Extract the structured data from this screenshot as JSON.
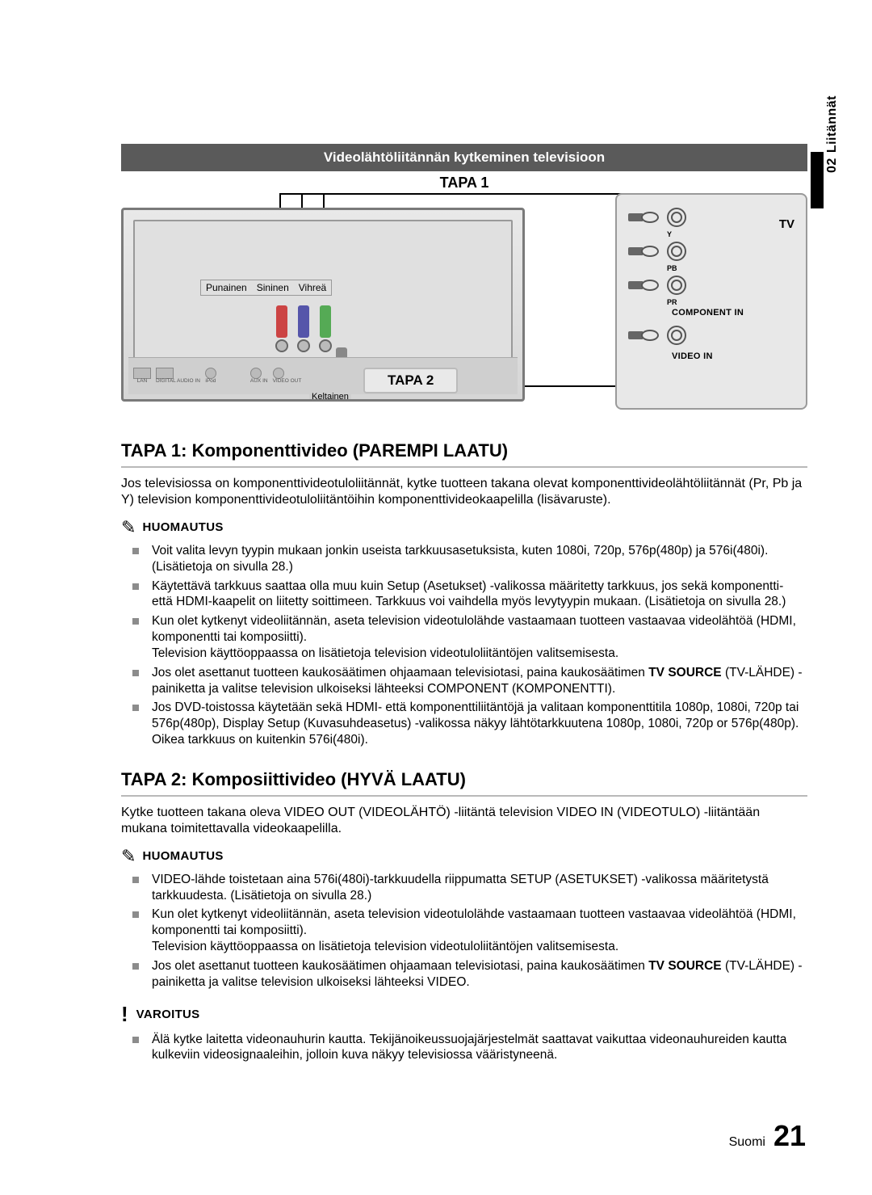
{
  "side_tab": {
    "number": "02",
    "label": "Liitännät"
  },
  "header": {
    "ribbon": "Videolähtöliitännän kytkeminen televisioon",
    "tapa1": "TAPA 1"
  },
  "diagram": {
    "plug_labels": {
      "red": "Punainen",
      "blue": "Sininen",
      "green": "Vihreä"
    },
    "yellow_label": "Keltainen",
    "tapa2_badge": "TAPA 2",
    "tv_label": "TV",
    "jack_subs": {
      "y": "Y",
      "pb": "PB",
      "pr": "PR"
    },
    "component_in": "COMPONENT  IN",
    "video_in": "VIDEO  IN",
    "port_labels": [
      "LAN",
      "DIGITAL AUDIO IN",
      "iPod",
      "",
      "AUX IN",
      "VIDEO OUT"
    ]
  },
  "section1": {
    "title": "TAPA 1: Komponenttivideo (PAREMPI LAATU)",
    "para": "Jos televisiossa on komponenttivideotuloliitännät, kytke tuotteen takana olevat komponenttivideolähtöliitännät (Pr, Pb ja Y) television komponenttivideotuloliitäntöihin komponenttivideokaapelilla (lisävaruste).",
    "note_title": "HUOMAUTUS",
    "bullets": [
      "Voit valita levyn tyypin mukaan jonkin useista tarkkuusasetuksista, kuten 1080i, 720p, 576p(480p) ja 576i(480i). (Lisätietoja on sivulla 28.)",
      "Käytettävä tarkkuus saattaa olla muu kuin Setup (Asetukset) -valikossa määritetty tarkkuus, jos sekä komponentti- että HDMI-kaapelit on liitetty soittimeen. Tarkkuus voi vaihdella myös levytyypin mukaan. (Lisätietoja on sivulla 28.)",
      "Kun olet kytkenyt videoliitännän, aseta television videotulolähde vastaamaan tuotteen vastaavaa videolähtöä (HDMI, komponentti tai komposiitti).\nTelevision käyttöoppaassa on lisätietoja television videotuloliitäntöjen valitsemisesta.",
      "Jos olet asettanut tuotteen kaukosäätimen ohjaamaan televisiotasi, paina kaukosäätimen __TV SOURCE__ (TV-LÄHDE) -painiketta ja valitse television ulkoiseksi lähteeksi COMPONENT (KOMPONENTTI).",
      "Jos DVD-toistossa käytetään sekä HDMI- että komponenttiliitäntöjä ja valitaan komponenttitila 1080p, 1080i, 720p tai 576p(480p), Display Setup (Kuvasuhdeasetus) -valikossa näkyy lähtötarkkuutena 1080p, 1080i, 720p or 576p(480p). Oikea tarkkuus on kuitenkin 576i(480i)."
    ]
  },
  "section2": {
    "title": "TAPA 2: Komposiittivideo (HYVÄ LAATU)",
    "para": "Kytke tuotteen takana oleva VIDEO OUT (VIDEOLÄHTÖ) -liitäntä television VIDEO IN (VIDEOTULO) -liitäntään mukana toimitettavalla videokaapelilla.",
    "note_title": "HUOMAUTUS",
    "bullets": [
      "VIDEO-lähde toistetaan aina 576i(480i)-tarkkuudella riippumatta SETUP (ASETUKSET) -valikossa määritetystä tarkkuudesta. (Lisätietoja on sivulla 28.)",
      "Kun olet kytkenyt videoliitännän, aseta television videotulolähde vastaamaan tuotteen vastaavaa videolähtöä (HDMI, komponentti tai komposiitti).\nTelevision käyttöoppaassa on lisätietoja television videotuloliitäntöjen valitsemisesta.",
      "Jos olet asettanut tuotteen kaukosäätimen ohjaamaan televisiotasi, paina kaukosäätimen __TV SOURCE__ (TV-LÄHDE) -painiketta ja valitse television ulkoiseksi lähteeksi VIDEO."
    ],
    "warn_title": "VAROITUS",
    "warn_bullet": "Älä kytke laitetta videonauhurin kautta. Tekijänoikeussuojajärjestelmät saattavat vaikuttaa videonauhureiden kautta kulkeviin videosignaaleihin, jolloin kuva näkyy televisiossa vääristyneenä."
  },
  "footer": {
    "lang": "Suomi",
    "page": "21"
  }
}
